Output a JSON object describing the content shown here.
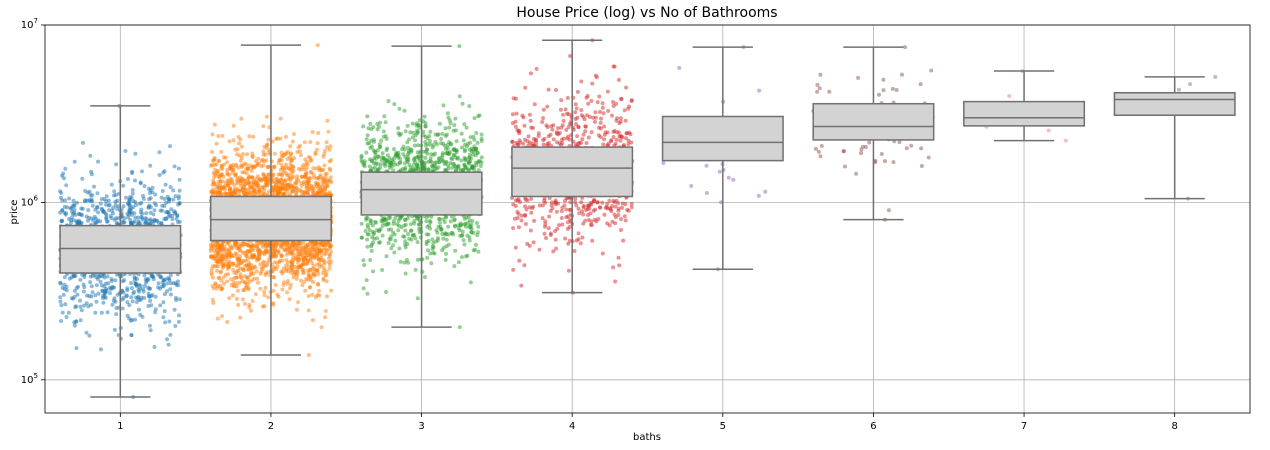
{
  "chart_data": {
    "type": "box",
    "title": "House Price (log) vs No of Bathrooms",
    "xlabel": "baths",
    "ylabel": "price",
    "yscale": "log",
    "ylim": [
      65000,
      10000000
    ],
    "y_ticks": [
      {
        "value": 100000,
        "base": "10",
        "exp": "5"
      },
      {
        "value": 1000000,
        "base": "10",
        "exp": "6"
      },
      {
        "value": 10000000,
        "base": "10",
        "exp": "7"
      }
    ],
    "grid": true,
    "box_color": "#d3d3d3",
    "categories": [
      "1",
      "2",
      "3",
      "4",
      "5",
      "6",
      "7",
      "8"
    ],
    "boxes": [
      {
        "category": "1",
        "whisker_low": 80000,
        "q1": 400000,
        "median": 550000,
        "q3": 740000,
        "whisker_high": 3500000,
        "points_color": "#1f77b4",
        "n_points": 1100
      },
      {
        "category": "2",
        "whisker_low": 138000,
        "q1": 610000,
        "median": 800000,
        "q3": 1080000,
        "whisker_high": 7700000,
        "points_color": "#ff7f0e",
        "n_points": 3000
      },
      {
        "category": "3",
        "whisker_low": 198000,
        "q1": 850000,
        "median": 1180000,
        "q3": 1480000,
        "whisker_high": 7600000,
        "points_color": "#2ca02c",
        "n_points": 1300
      },
      {
        "category": "4",
        "whisker_low": 310000,
        "q1": 1080000,
        "median": 1560000,
        "q3": 2050000,
        "whisker_high": 8200000,
        "points_color": "#d62728",
        "n_points": 800
      },
      {
        "category": "5",
        "whisker_low": 420000,
        "q1": 1720000,
        "median": 2180000,
        "q3": 3050000,
        "whisker_high": 7500000,
        "points_color": "#9467bd",
        "n_points": 35
      },
      {
        "category": "6",
        "whisker_low": 800000,
        "q1": 2250000,
        "median": 2680000,
        "q3": 3600000,
        "whisker_high": 7500000,
        "points_color": "#8c564b",
        "n_points": 80
      },
      {
        "category": "7",
        "whisker_low": 2230000,
        "q1": 2700000,
        "median": 3000000,
        "q3": 3700000,
        "whisker_high": 5500000,
        "points_color": "#e377c2",
        "n_points": 3
      },
      {
        "category": "8",
        "whisker_low": 1050000,
        "q1": 3100000,
        "median": 3800000,
        "q3": 4150000,
        "whisker_high": 5100000,
        "points_color": "#7f7f7f",
        "n_points": 3
      }
    ]
  }
}
